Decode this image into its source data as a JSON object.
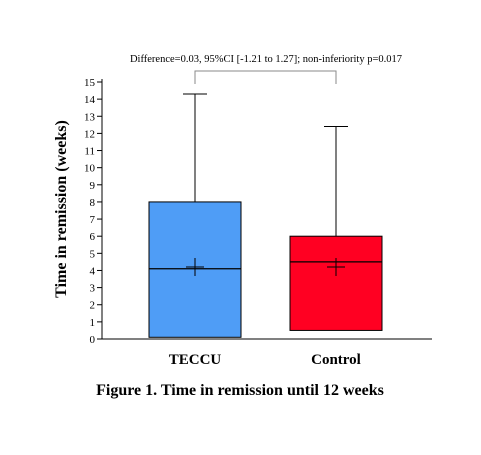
{
  "chart_data": {
    "type": "boxplot",
    "annotation": "Difference=0.03, 95%CI [-1.21 to 1.27]; non-inferiority p=0.017",
    "ylabel": "Time in remission (weeks)",
    "ylim": [
      0,
      15
    ],
    "yticks": [
      "0",
      "1",
      "2",
      "3",
      "4",
      "5",
      "6",
      "7",
      "8",
      "9",
      "10",
      "11",
      "12",
      "13",
      "14",
      "15"
    ],
    "grid": false,
    "categories": [
      "TECCU",
      "Control"
    ],
    "series": [
      {
        "name": "TECCU",
        "color": "#4f9df6",
        "whisker_low": 0.1,
        "q1": 0.1,
        "median": 4.1,
        "mean": 4.2,
        "q3": 8.0,
        "whisker_high": 14.3
      },
      {
        "name": "Control",
        "color": "#ff0022",
        "whisker_low": 0.5,
        "q1": 0.5,
        "median": 4.5,
        "mean": 4.2,
        "q3": 6.0,
        "whisker_high": 12.4
      }
    ],
    "caption": "Figure 1. Time in remission until 12 weeks"
  }
}
